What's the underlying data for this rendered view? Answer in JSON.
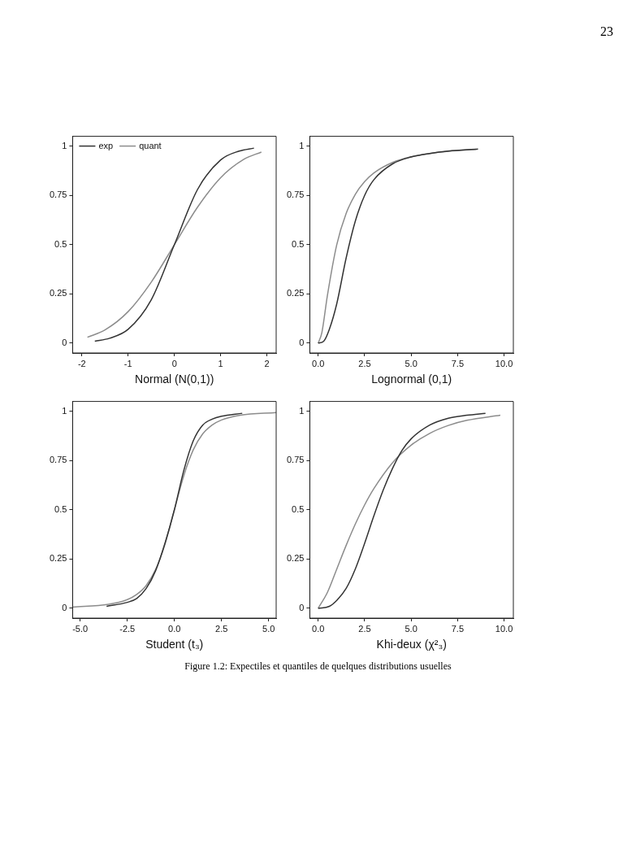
{
  "chart_data": [
    {
      "type": "line",
      "xlabel": "Normal (N(0,1))",
      "xlim": [
        -2.2,
        2.2
      ],
      "xticks": [
        -2,
        -1,
        0,
        1,
        2
      ],
      "ylim": [
        -0.05,
        1.05
      ],
      "yticks": [
        0,
        0.25,
        0.5,
        0.75,
        1
      ],
      "legend": "top left",
      "annotations": [
        "23"
      ],
      "series": [
        {
          "name": "exp",
          "color": "#333333",
          "x": [
            -1.72,
            -1.4,
            -1,
            -0.5,
            0,
            0.5,
            1,
            1.4,
            1.72
          ],
          "values": [
            0.01,
            0.025,
            0.07,
            0.22,
            0.5,
            0.78,
            0.93,
            0.975,
            0.99
          ]
        },
        {
          "name": "quant",
          "color": "#8c8c8c",
          "x": [
            -1.88,
            -1.5,
            -1,
            -0.5,
            0,
            0.5,
            1,
            1.5,
            1.88
          ],
          "values": [
            0.03,
            0.067,
            0.16,
            0.31,
            0.5,
            0.69,
            0.84,
            0.933,
            0.97
          ]
        }
      ]
    },
    {
      "type": "line",
      "xlabel": "Lognormal (0,1)",
      "xlim": [
        -0.45,
        10.5
      ],
      "xticks": [
        {
          "value": 0,
          "label": "0.0"
        },
        {
          "value": 2.5,
          "label": "2.5"
        },
        {
          "value": 5,
          "label": "5.0"
        },
        {
          "value": 7.5,
          "label": "7.5"
        },
        {
          "value": 10,
          "label": "10.0"
        }
      ],
      "ylim": [
        -0.05,
        1.05
      ],
      "yticks": [
        0,
        0.25,
        0.5,
        0.75,
        1
      ],
      "series": [
        {
          "color": "#333333",
          "x": [
            0,
            0.3,
            0.6,
            1,
            1.5,
            2,
            2.5,
            3,
            4,
            5,
            6,
            7,
            8.6
          ],
          "values": [
            0,
            0.01,
            0.07,
            0.2,
            0.43,
            0.62,
            0.75,
            0.83,
            0.91,
            0.945,
            0.963,
            0.975,
            0.985
          ]
        },
        {
          "color": "#8c8c8c",
          "x": [
            0,
            0.2,
            0.5,
            1,
            1.5,
            2,
            2.5,
            3,
            4,
            5,
            6,
            7,
            8.5
          ],
          "values": [
            0,
            0.054,
            0.244,
            0.5,
            0.657,
            0.756,
            0.82,
            0.864,
            0.917,
            0.946,
            0.963,
            0.974,
            0.984
          ]
        }
      ]
    },
    {
      "type": "line",
      "xlabel": "Student (t₃)",
      "xlim": [
        -5.4,
        5.4
      ],
      "xticks": [
        {
          "value": -5,
          "label": "-5.0"
        },
        {
          "value": -2.5,
          "label": "-2.5"
        },
        {
          "value": 0,
          "label": "0.0"
        },
        {
          "value": 2.5,
          "label": "2.5"
        },
        {
          "value": 5,
          "label": "5.0"
        }
      ],
      "ylim": [
        -0.05,
        1.05
      ],
      "yticks": [
        0,
        0.25,
        0.5,
        0.75,
        1
      ],
      "series": [
        {
          "color": "#333333",
          "x": [
            -3.6,
            -2.5,
            -2,
            -1.5,
            -1,
            -0.5,
            0,
            0.5,
            1,
            1.5,
            2,
            2.5,
            3.6
          ],
          "values": [
            0.01,
            0.03,
            0.05,
            0.1,
            0.19,
            0.33,
            0.5,
            0.7,
            0.85,
            0.93,
            0.96,
            0.975,
            0.99
          ]
        },
        {
          "color": "#8c8c8c",
          "x": [
            -5.4,
            -3.5,
            -2.5,
            -2,
            -1.5,
            -1,
            -0.5,
            0,
            0.5,
            1,
            1.5,
            2,
            2.5,
            3.5,
            5.4
          ],
          "values": [
            0.006,
            0.02,
            0.044,
            0.07,
            0.115,
            0.196,
            0.326,
            0.5,
            0.674,
            0.804,
            0.885,
            0.93,
            0.956,
            0.98,
            0.994
          ]
        }
      ]
    },
    {
      "type": "line",
      "xlabel": "Khi-deux (χ²₃)",
      "xlim": [
        -0.45,
        10.5
      ],
      "xticks": [
        {
          "value": 0,
          "label": "0.0"
        },
        {
          "value": 2.5,
          "label": "2.5"
        },
        {
          "value": 5,
          "label": "5.0"
        },
        {
          "value": 7.5,
          "label": "7.5"
        },
        {
          "value": 10,
          "label": "10.0"
        }
      ],
      "ylim": [
        -0.05,
        1.05
      ],
      "yticks": [
        0,
        0.25,
        0.5,
        0.75,
        1
      ],
      "annotations": [
        "Figure 1.2: Expectiles et quantiles de quelques distributions usuelles"
      ],
      "series": [
        {
          "color": "#333333",
          "x": [
            0,
            0.6,
            1,
            1.5,
            2,
            2.5,
            3,
            3.5,
            4,
            4.5,
            5,
            6,
            7,
            8,
            9
          ],
          "values": [
            0,
            0.01,
            0.04,
            0.1,
            0.2,
            0.33,
            0.47,
            0.6,
            0.71,
            0.8,
            0.86,
            0.93,
            0.965,
            0.98,
            0.99
          ]
        },
        {
          "color": "#8c8c8c",
          "x": [
            0,
            0.5,
            1,
            1.5,
            2,
            2.5,
            3,
            4,
            5,
            6,
            7,
            8,
            9.8
          ],
          "values": [
            0,
            0.081,
            0.199,
            0.318,
            0.428,
            0.525,
            0.608,
            0.739,
            0.828,
            0.888,
            0.928,
            0.954,
            0.98
          ]
        }
      ]
    }
  ]
}
